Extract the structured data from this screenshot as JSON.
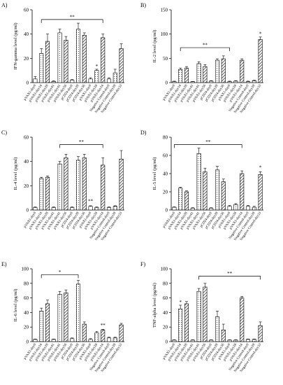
{
  "figure": {
    "categories": [
      "pVAX1-day0",
      "pVAX1-day14",
      "pVAX1-day28",
      "pVAX1-day41",
      "pVAX1-day41",
      "pVAX1-day56",
      "pCD24-day0",
      "pCD24-day28",
      "pCD24-day36",
      "pVAX1-day0",
      "pVAX1-day28",
      "pVAX1-day14",
      "Negative Control-day0",
      "Negative Control-day28",
      "Negative Control-day33"
    ],
    "colors": {
      "bar_outline": "#000000",
      "solid_fill": "#ffffff",
      "hatch_fill": "#444444"
    }
  },
  "chart_data": [
    {
      "type": "bar",
      "panel": "A)",
      "ylabel": "IFN-gamma level (pg/ml)",
      "ylim": [
        0,
        60
      ],
      "yticks": [
        0,
        20,
        40,
        60
      ],
      "values": [
        3,
        24,
        34,
        1,
        41,
        35,
        2,
        44,
        39,
        3,
        10,
        37,
        3,
        8,
        28
      ],
      "errors": [
        2,
        4,
        6,
        0.5,
        3,
        3,
        0.5,
        5,
        2,
        1,
        1,
        3,
        1,
        3,
        4
      ],
      "annotations": [
        {
          "label": "**",
          "type": "bracket",
          "from": 1,
          "to": 11,
          "y": 52
        },
        {
          "label": "*",
          "type": "star",
          "at": 10,
          "y": 12
        }
      ]
    },
    {
      "type": "bar",
      "panel": "B)",
      "ylabel": "IL-2 level (pg/ml)",
      "ylim": [
        0,
        150
      ],
      "yticks": [
        0,
        50,
        100,
        150
      ],
      "values": [
        2,
        27,
        30,
        2,
        39,
        33,
        3,
        46,
        49,
        2,
        3,
        46,
        2,
        4,
        89
      ],
      "errors": [
        1,
        3,
        3,
        0.5,
        4,
        4,
        1,
        3,
        6,
        1,
        1,
        3,
        1,
        1,
        5
      ],
      "annotations": [
        {
          "label": "**",
          "type": "bracket",
          "from": 1,
          "to": 9,
          "y": 72
        },
        {
          "label": "*",
          "type": "star",
          "at": 14,
          "y": 97
        }
      ]
    },
    {
      "type": "bar",
      "panel": "C)",
      "ylabel": "IL-4 level (pg/ml)",
      "ylim": [
        0,
        60
      ],
      "yticks": [
        0,
        20,
        40,
        60
      ],
      "values": [
        2,
        26,
        27,
        2,
        38,
        43,
        2,
        41,
        43,
        3,
        2,
        37,
        2,
        3,
        42
      ],
      "errors": [
        0.5,
        1,
        1,
        0.5,
        2,
        3,
        0.5,
        3,
        3,
        0.5,
        0.5,
        6,
        0.5,
        0.5,
        7
      ],
      "annotations": [
        {
          "label": "**",
          "type": "bracket",
          "from": 4,
          "to": 11,
          "y": 54
        },
        {
          "label": "**",
          "type": "star",
          "at": 9,
          "y": 6
        }
      ]
    },
    {
      "type": "bar",
      "panel": "D)",
      "ylabel": "IL-5 level (pg/ml)",
      "ylim": [
        0,
        80
      ],
      "yticks": [
        0,
        20,
        40,
        60,
        80
      ],
      "values": [
        3,
        24,
        20,
        2,
        62,
        42,
        2,
        44,
        31,
        4,
        6,
        40,
        4,
        3,
        39
      ],
      "errors": [
        0.5,
        1,
        1,
        0.5,
        6,
        4,
        0.5,
        4,
        3,
        1,
        1,
        3,
        1,
        1,
        3
      ],
      "annotations": [
        {
          "label": "**",
          "type": "bracket",
          "from": 0,
          "to": 11,
          "y": 72
        },
        {
          "label": "*",
          "type": "star",
          "at": 14,
          "y": 45
        }
      ]
    },
    {
      "type": "bar",
      "panel": "E)",
      "ylabel": "IL-6 level (pg/ml)",
      "ylim": [
        0,
        100
      ],
      "yticks": [
        0,
        20,
        40,
        60,
        80,
        100
      ],
      "values": [
        3,
        42,
        52,
        3,
        65,
        67,
        4,
        79,
        24,
        3,
        12,
        16,
        5,
        5,
        23
      ],
      "errors": [
        0.5,
        4,
        5,
        0.5,
        4,
        4,
        1,
        5,
        3,
        1,
        2,
        1,
        1,
        1,
        2
      ],
      "annotations": [
        {
          "label": "*",
          "type": "bracket",
          "from": 1,
          "to": 7,
          "y": 92
        },
        {
          "label": "**",
          "type": "star",
          "at": 11,
          "y": 20
        }
      ]
    },
    {
      "type": "bar",
      "panel": "F)",
      "ylabel": "TNF-alpha level (pg/ml)",
      "ylim": [
        0,
        100
      ],
      "yticks": [
        0,
        20,
        40,
        60,
        80,
        100
      ],
      "values": [
        2,
        45,
        52,
        2,
        69,
        75,
        2,
        34,
        16,
        2,
        2,
        60,
        3,
        3,
        22
      ],
      "errors": [
        0.5,
        5,
        3,
        0.5,
        4,
        5,
        0.5,
        8,
        8,
        0.5,
        0.5,
        2,
        0.5,
        0.5,
        5
      ],
      "annotations": [
        {
          "label": "**",
          "type": "bracket",
          "from": 4,
          "to": 14,
          "y": 90
        },
        {
          "label": "*",
          "type": "star",
          "at": 1,
          "y": 52
        }
      ]
    }
  ]
}
